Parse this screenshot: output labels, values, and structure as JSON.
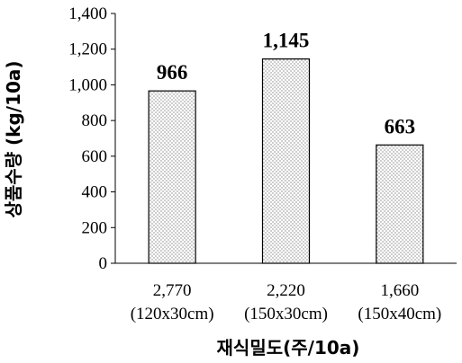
{
  "chart_data": {
    "type": "bar",
    "title": "",
    "xlabel": "재식밀도(주/10a)",
    "ylabel": "상품수량 (kg/10a)",
    "categories": [
      "2,770",
      "2,220",
      "1,660"
    ],
    "category_sublabels": [
      "(120x30cm)",
      "(150x30cm)",
      "(150x40cm)"
    ],
    "values": [
      966,
      1145,
      663
    ],
    "data_labels": [
      "966",
      "1,145",
      "663"
    ],
    "ylim": [
      0,
      1400
    ],
    "yticks": [
      0,
      200,
      400,
      600,
      800,
      1000,
      1200,
      1400
    ],
    "ytick_labels": [
      "0",
      "200",
      "400",
      "600",
      "800",
      "1,000",
      "1,200",
      "1,400"
    ],
    "grid": false,
    "legend": "none",
    "bar_fill": "dotted pattern",
    "colors": {
      "bar_fill": "#ffffff",
      "bar_dots": "#555555",
      "bar_border": "#000000",
      "axis": "#000000"
    }
  }
}
